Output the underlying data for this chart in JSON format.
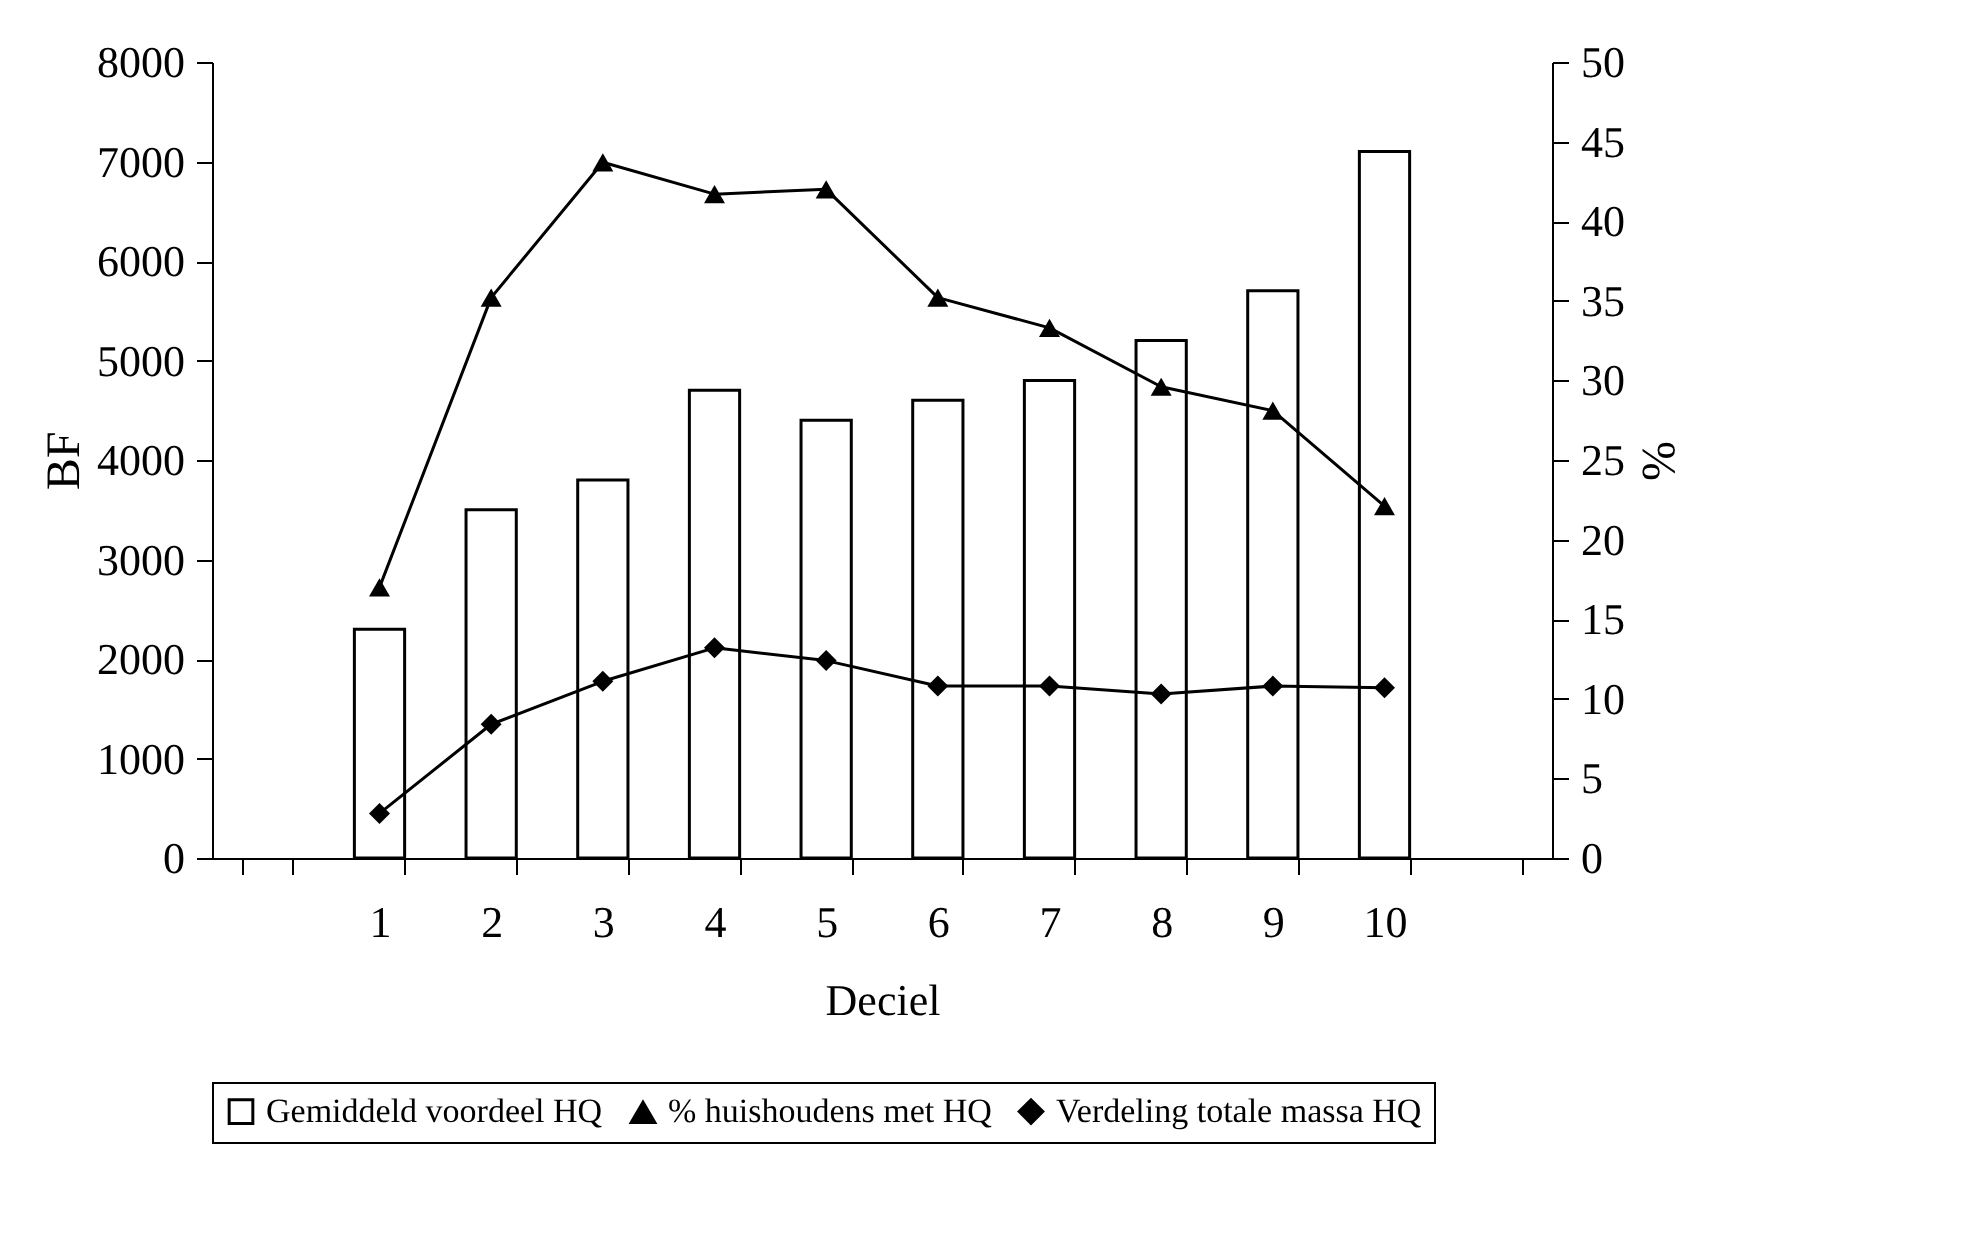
{
  "chart_data": {
    "type": "bar",
    "xlabel": "Deciel",
    "ylabel": "BF",
    "y2label": "%",
    "categories": [
      null,
      "1",
      "2",
      "3",
      "4",
      "5",
      "6",
      "7",
      "8",
      "9",
      "10",
      null
    ],
    "ylim": [
      0,
      8000
    ],
    "yticks": [
      0,
      1000,
      2000,
      3000,
      4000,
      5000,
      6000,
      7000,
      8000
    ],
    "y2lim": [
      0,
      50
    ],
    "y2ticks": [
      0,
      5,
      10,
      15,
      20,
      25,
      30,
      35,
      40,
      45,
      50
    ],
    "grid": false,
    "legend": "bottom",
    "series": [
      {
        "name": "Gemiddeld voordeel HQ",
        "color": "#ffffff",
        "values": [
          null,
          2300,
          3500,
          3800,
          4700,
          4400,
          4600,
          4800,
          5200,
          5700,
          7100,
          null
        ]
      },
      {
        "name": "% huishoudens met HQ",
        "type": "line",
        "axis": "y2",
        "marker": "triangle",
        "color": "#000000",
        "values": [
          null,
          17.0,
          35.2,
          43.7,
          41.7,
          42.0,
          35.2,
          33.3,
          29.6,
          28.1,
          22.1,
          null
        ]
      },
      {
        "name": "Verdeling totale massa HQ",
        "type": "line",
        "axis": "y2",
        "marker": "diamond",
        "color": "#000000",
        "values": [
          null,
          2.8,
          8.4,
          11.1,
          13.2,
          12.4,
          10.8,
          10.8,
          10.3,
          10.8,
          10.7,
          null
        ]
      }
    ]
  }
}
